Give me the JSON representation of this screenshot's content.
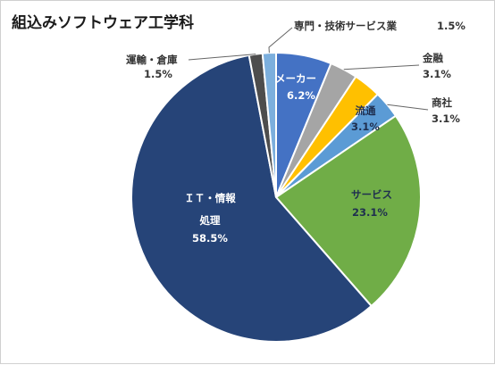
{
  "chart_data": {
    "type": "pie",
    "title": "組込みソフトウェア工学科",
    "slices": [
      {
        "label": "メーカー",
        "percent": "6.2%",
        "value": 6.2,
        "color": "#4472C4"
      },
      {
        "label": "金融",
        "percent": "3.1%",
        "value": 3.1,
        "color": "#A5A5A5"
      },
      {
        "label": "流通",
        "percent": "3.1%",
        "value": 3.1,
        "color": "#FFC000"
      },
      {
        "label": "商社",
        "percent": "3.1%",
        "value": 3.1,
        "color": "#5B9BD5"
      },
      {
        "label": "サービス",
        "percent": "23.1%",
        "value": 23.1,
        "color": "#70AD47"
      },
      {
        "label": "ＩＴ・情報処理",
        "label_line1": "ＩＴ・情報",
        "label_line2": "処理",
        "percent": "58.5%",
        "value": 58.5,
        "color": "#264478"
      },
      {
        "label": "運輸・倉庫",
        "percent": "1.5%",
        "value": 1.5,
        "color": "#4D4D4D"
      },
      {
        "label": "専門・技術サービス業",
        "percent": "1.5%",
        "value": 1.5,
        "color": "#7CAFDD"
      }
    ]
  }
}
